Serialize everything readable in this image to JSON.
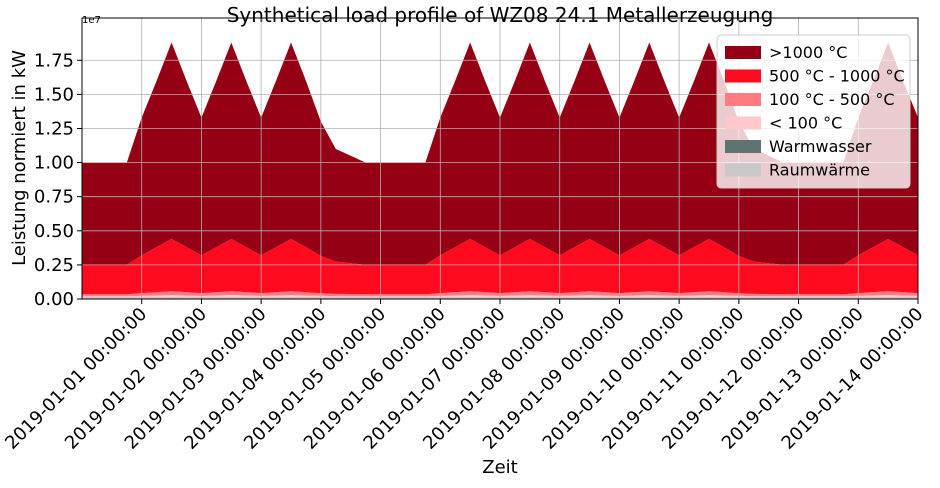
{
  "chart_data": {
    "type": "stacked_area",
    "title": "Synthetical load profile of WZ08 24.1 Metallerzeugung",
    "xlabel": "Zeit",
    "ylabel": "Leistung normiert in kW",
    "y_offset_label": "1e7",
    "x": [
      "2018-12-31 00:00:00",
      "2018-12-31 06:00:00",
      "2018-12-31 12:00:00",
      "2018-12-31 18:00:00",
      "2019-01-01 00:00:00",
      "2019-01-01 06:00:00",
      "2019-01-01 12:00:00",
      "2019-01-01 18:00:00",
      "2019-01-02 00:00:00",
      "2019-01-02 06:00:00",
      "2019-01-02 12:00:00",
      "2019-01-02 18:00:00",
      "2019-01-03 00:00:00",
      "2019-01-03 06:00:00",
      "2019-01-03 12:00:00",
      "2019-01-03 18:00:00",
      "2019-01-04 00:00:00",
      "2019-01-04 06:00:00",
      "2019-01-04 12:00:00",
      "2019-01-04 18:00:00",
      "2019-01-05 00:00:00",
      "2019-01-05 06:00:00",
      "2019-01-05 12:00:00",
      "2019-01-05 18:00:00",
      "2019-01-06 00:00:00",
      "2019-01-06 06:00:00",
      "2019-01-06 12:00:00",
      "2019-01-06 18:00:00",
      "2019-01-07 00:00:00",
      "2019-01-07 06:00:00",
      "2019-01-07 12:00:00",
      "2019-01-07 18:00:00",
      "2019-01-08 00:00:00",
      "2019-01-08 06:00:00",
      "2019-01-08 12:00:00",
      "2019-01-08 18:00:00",
      "2019-01-09 00:00:00",
      "2019-01-09 06:00:00",
      "2019-01-09 12:00:00",
      "2019-01-09 18:00:00",
      "2019-01-10 00:00:00",
      "2019-01-10 06:00:00",
      "2019-01-10 12:00:00",
      "2019-01-10 18:00:00",
      "2019-01-11 00:00:00",
      "2019-01-11 06:00:00",
      "2019-01-11 12:00:00",
      "2019-01-11 18:00:00",
      "2019-01-12 00:00:00",
      "2019-01-12 06:00:00",
      "2019-01-12 12:00:00",
      "2019-01-12 18:00:00",
      "2019-01-13 00:00:00",
      "2019-01-13 06:00:00",
      "2019-01-13 12:00:00",
      "2019-01-13 18:00:00",
      "2019-01-14 00:00:00"
    ],
    "series": [
      {
        "name": ">1000 °C",
        "color": "#960014",
        "values": [
          7500000,
          7500000,
          7500000,
          7500000,
          10100000,
          12200000,
          14400000,
          12200000,
          10100000,
          12200000,
          14400000,
          12200000,
          10100000,
          12200000,
          14400000,
          12200000,
          9845000,
          8255000,
          7877000,
          7500000,
          7500000,
          7500000,
          7500000,
          7500000,
          10100000,
          12200000,
          14400000,
          12200000,
          10100000,
          12200000,
          14400000,
          12200000,
          10100000,
          12200000,
          14400000,
          12200000,
          10100000,
          12200000,
          14400000,
          12200000,
          10100000,
          12200000,
          14400000,
          12200000,
          9845000,
          8255000,
          7877000,
          7500000,
          7500000,
          7500000,
          7500000,
          7500000,
          10100000,
          12200000,
          14400000,
          12200000,
          10100000
        ]
      },
      {
        "name": "500 °C - 1000 °C",
        "color": "#ff0a1e",
        "values": [
          2150000,
          2150000,
          2150000,
          2150000,
          2767000,
          3300000,
          3830000,
          3300000,
          2767000,
          3300000,
          3830000,
          3300000,
          2767000,
          3300000,
          3830000,
          3300000,
          2730000,
          2370000,
          2260000,
          2150000,
          2150000,
          2150000,
          2150000,
          2150000,
          2767000,
          3300000,
          3830000,
          3300000,
          2767000,
          3300000,
          3830000,
          3300000,
          2767000,
          3300000,
          3830000,
          3300000,
          2767000,
          3300000,
          3830000,
          3300000,
          2767000,
          3300000,
          3830000,
          3300000,
          2730000,
          2370000,
          2260000,
          2150000,
          2150000,
          2150000,
          2150000,
          2150000,
          2767000,
          3300000,
          3830000,
          3300000,
          2767000
        ]
      },
      {
        "name": "100 °C - 500 °C",
        "color": "#ff7a82",
        "values": [
          150000,
          150000,
          150000,
          150000,
          200000,
          240000,
          282000,
          240000,
          200000,
          240000,
          282000,
          240000,
          200000,
          240000,
          282000,
          240000,
          195000,
          165000,
          158000,
          150000,
          150000,
          150000,
          150000,
          150000,
          200000,
          240000,
          282000,
          240000,
          200000,
          240000,
          282000,
          240000,
          200000,
          240000,
          282000,
          240000,
          200000,
          240000,
          282000,
          240000,
          200000,
          240000,
          282000,
          240000,
          195000,
          165000,
          158000,
          150000,
          150000,
          150000,
          150000,
          150000,
          200000,
          240000,
          282000,
          240000,
          200000
        ]
      },
      {
        "name": "< 100 °C",
        "color": "#ffc8cc",
        "values": [
          100000,
          100000,
          100000,
          100000,
          133000,
          160000,
          188000,
          160000,
          133000,
          160000,
          188000,
          160000,
          133000,
          160000,
          188000,
          160000,
          130000,
          110000,
          105000,
          100000,
          100000,
          100000,
          100000,
          100000,
          133000,
          160000,
          188000,
          160000,
          133000,
          160000,
          188000,
          160000,
          133000,
          160000,
          188000,
          160000,
          133000,
          160000,
          188000,
          160000,
          133000,
          160000,
          188000,
          160000,
          130000,
          110000,
          105000,
          100000,
          100000,
          100000,
          100000,
          100000,
          133000,
          160000,
          188000,
          160000,
          133000
        ]
      },
      {
        "name": "Warmwasser",
        "color": "#5f7373",
        "values": [
          20000,
          20000,
          20000,
          20000,
          20000,
          20000,
          20000,
          20000,
          20000,
          20000,
          20000,
          20000,
          20000,
          20000,
          20000,
          20000,
          20000,
          20000,
          20000,
          20000,
          20000,
          20000,
          20000,
          20000,
          20000,
          20000,
          20000,
          20000,
          20000,
          20000,
          20000,
          20000,
          20000,
          20000,
          20000,
          20000,
          20000,
          20000,
          20000,
          20000,
          20000,
          20000,
          20000,
          20000,
          20000,
          20000,
          20000,
          20000,
          20000,
          20000,
          20000,
          20000,
          20000,
          20000,
          20000,
          20000,
          20000
        ]
      },
      {
        "name": "Raumwärme",
        "color": "#c8c8c8",
        "values": [
          80000,
          80000,
          80000,
          80000,
          80000,
          80000,
          80000,
          80000,
          80000,
          80000,
          80000,
          80000,
          80000,
          80000,
          80000,
          80000,
          80000,
          80000,
          80000,
          80000,
          80000,
          80000,
          80000,
          80000,
          80000,
          80000,
          80000,
          80000,
          80000,
          80000,
          80000,
          80000,
          80000,
          80000,
          80000,
          80000,
          80000,
          80000,
          80000,
          80000,
          80000,
          80000,
          80000,
          80000,
          80000,
          80000,
          80000,
          80000,
          80000,
          80000,
          80000,
          80000,
          80000,
          80000,
          80000,
          80000,
          80000
        ]
      }
    ],
    "xlim": [
      "2018-12-31 00:00:00",
      "2019-01-14 00:00:00"
    ],
    "xticks": [
      "2019-01-01 00:00:00",
      "2019-01-02 00:00:00",
      "2019-01-03 00:00:00",
      "2019-01-04 00:00:00",
      "2019-01-05 00:00:00",
      "2019-01-06 00:00:00",
      "2019-01-07 00:00:00",
      "2019-01-08 00:00:00",
      "2019-01-09 00:00:00",
      "2019-01-10 00:00:00",
      "2019-01-11 00:00:00",
      "2019-01-12 00:00:00",
      "2019-01-13 00:00:00",
      "2019-01-14 00:00:00"
    ],
    "ylim": [
      0,
      20600000
    ],
    "yticks": [
      {
        "value": 0,
        "label": "0.00"
      },
      {
        "value": 2500000,
        "label": "0.25"
      },
      {
        "value": 5000000,
        "label": "0.50"
      },
      {
        "value": 7500000,
        "label": "0.75"
      },
      {
        "value": 10000000,
        "label": "1.00"
      },
      {
        "value": 12500000,
        "label": "1.25"
      },
      {
        "value": 15000000,
        "label": "1.50"
      },
      {
        "value": 17500000,
        "label": "1.75"
      }
    ],
    "grid": true,
    "legend": "upper right"
  }
}
